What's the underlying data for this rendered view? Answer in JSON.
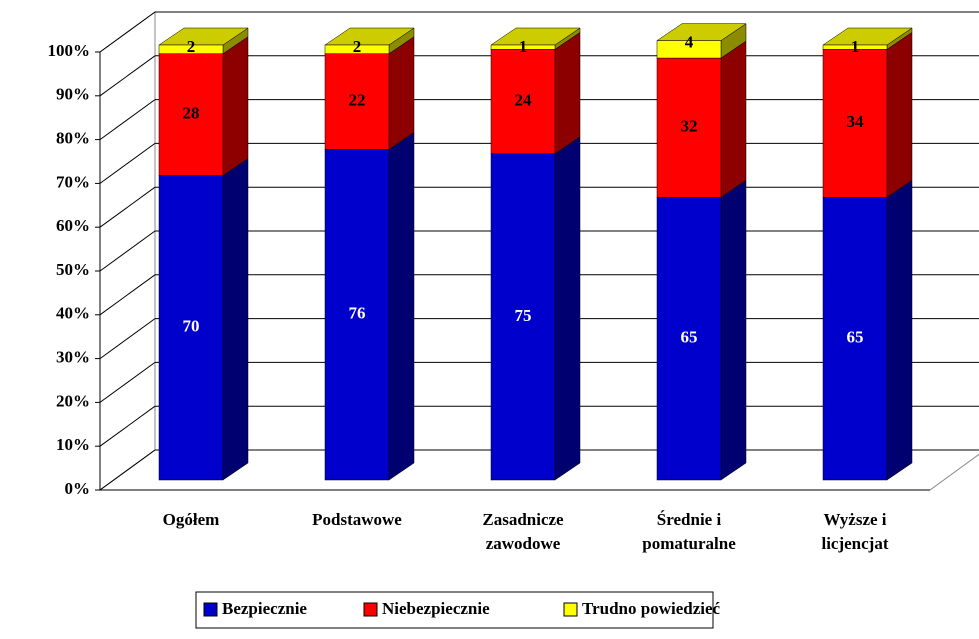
{
  "chart_data": {
    "type": "bar",
    "stacked": true,
    "categories": [
      "Ogółem",
      "Podstawowe",
      "Zasadnicze\nzawodowe",
      "Średnie i\npomaturalne",
      "Wyższe i\nlicjencjat"
    ],
    "series": [
      {
        "name": "Bezpiecznie",
        "color": "#0000cc",
        "values": [
          70,
          76,
          75,
          65,
          65
        ]
      },
      {
        "name": "Niebezpiecznie",
        "color": "#ff0000",
        "values": [
          28,
          22,
          24,
          32,
          34
        ]
      },
      {
        "name": "Trudno powiedzieć",
        "color": "#ffff00",
        "values": [
          2,
          2,
          1,
          4,
          1
        ]
      }
    ],
    "ylim": [
      0,
      100
    ],
    "yticks": [
      {
        "value": 0,
        "label": "0%"
      },
      {
        "value": 10,
        "label": "10%"
      },
      {
        "value": 20,
        "label": "20%"
      },
      {
        "value": 30,
        "label": "30%"
      },
      {
        "value": 40,
        "label": "40%"
      },
      {
        "value": 50,
        "label": "50%"
      },
      {
        "value": 60,
        "label": "60%"
      },
      {
        "value": 70,
        "label": "70%"
      },
      {
        "value": 80,
        "label": "80%"
      },
      {
        "value": 90,
        "label": "90%"
      },
      {
        "value": 100,
        "label": "100%"
      }
    ],
    "grid": true,
    "legend": "bottom"
  }
}
